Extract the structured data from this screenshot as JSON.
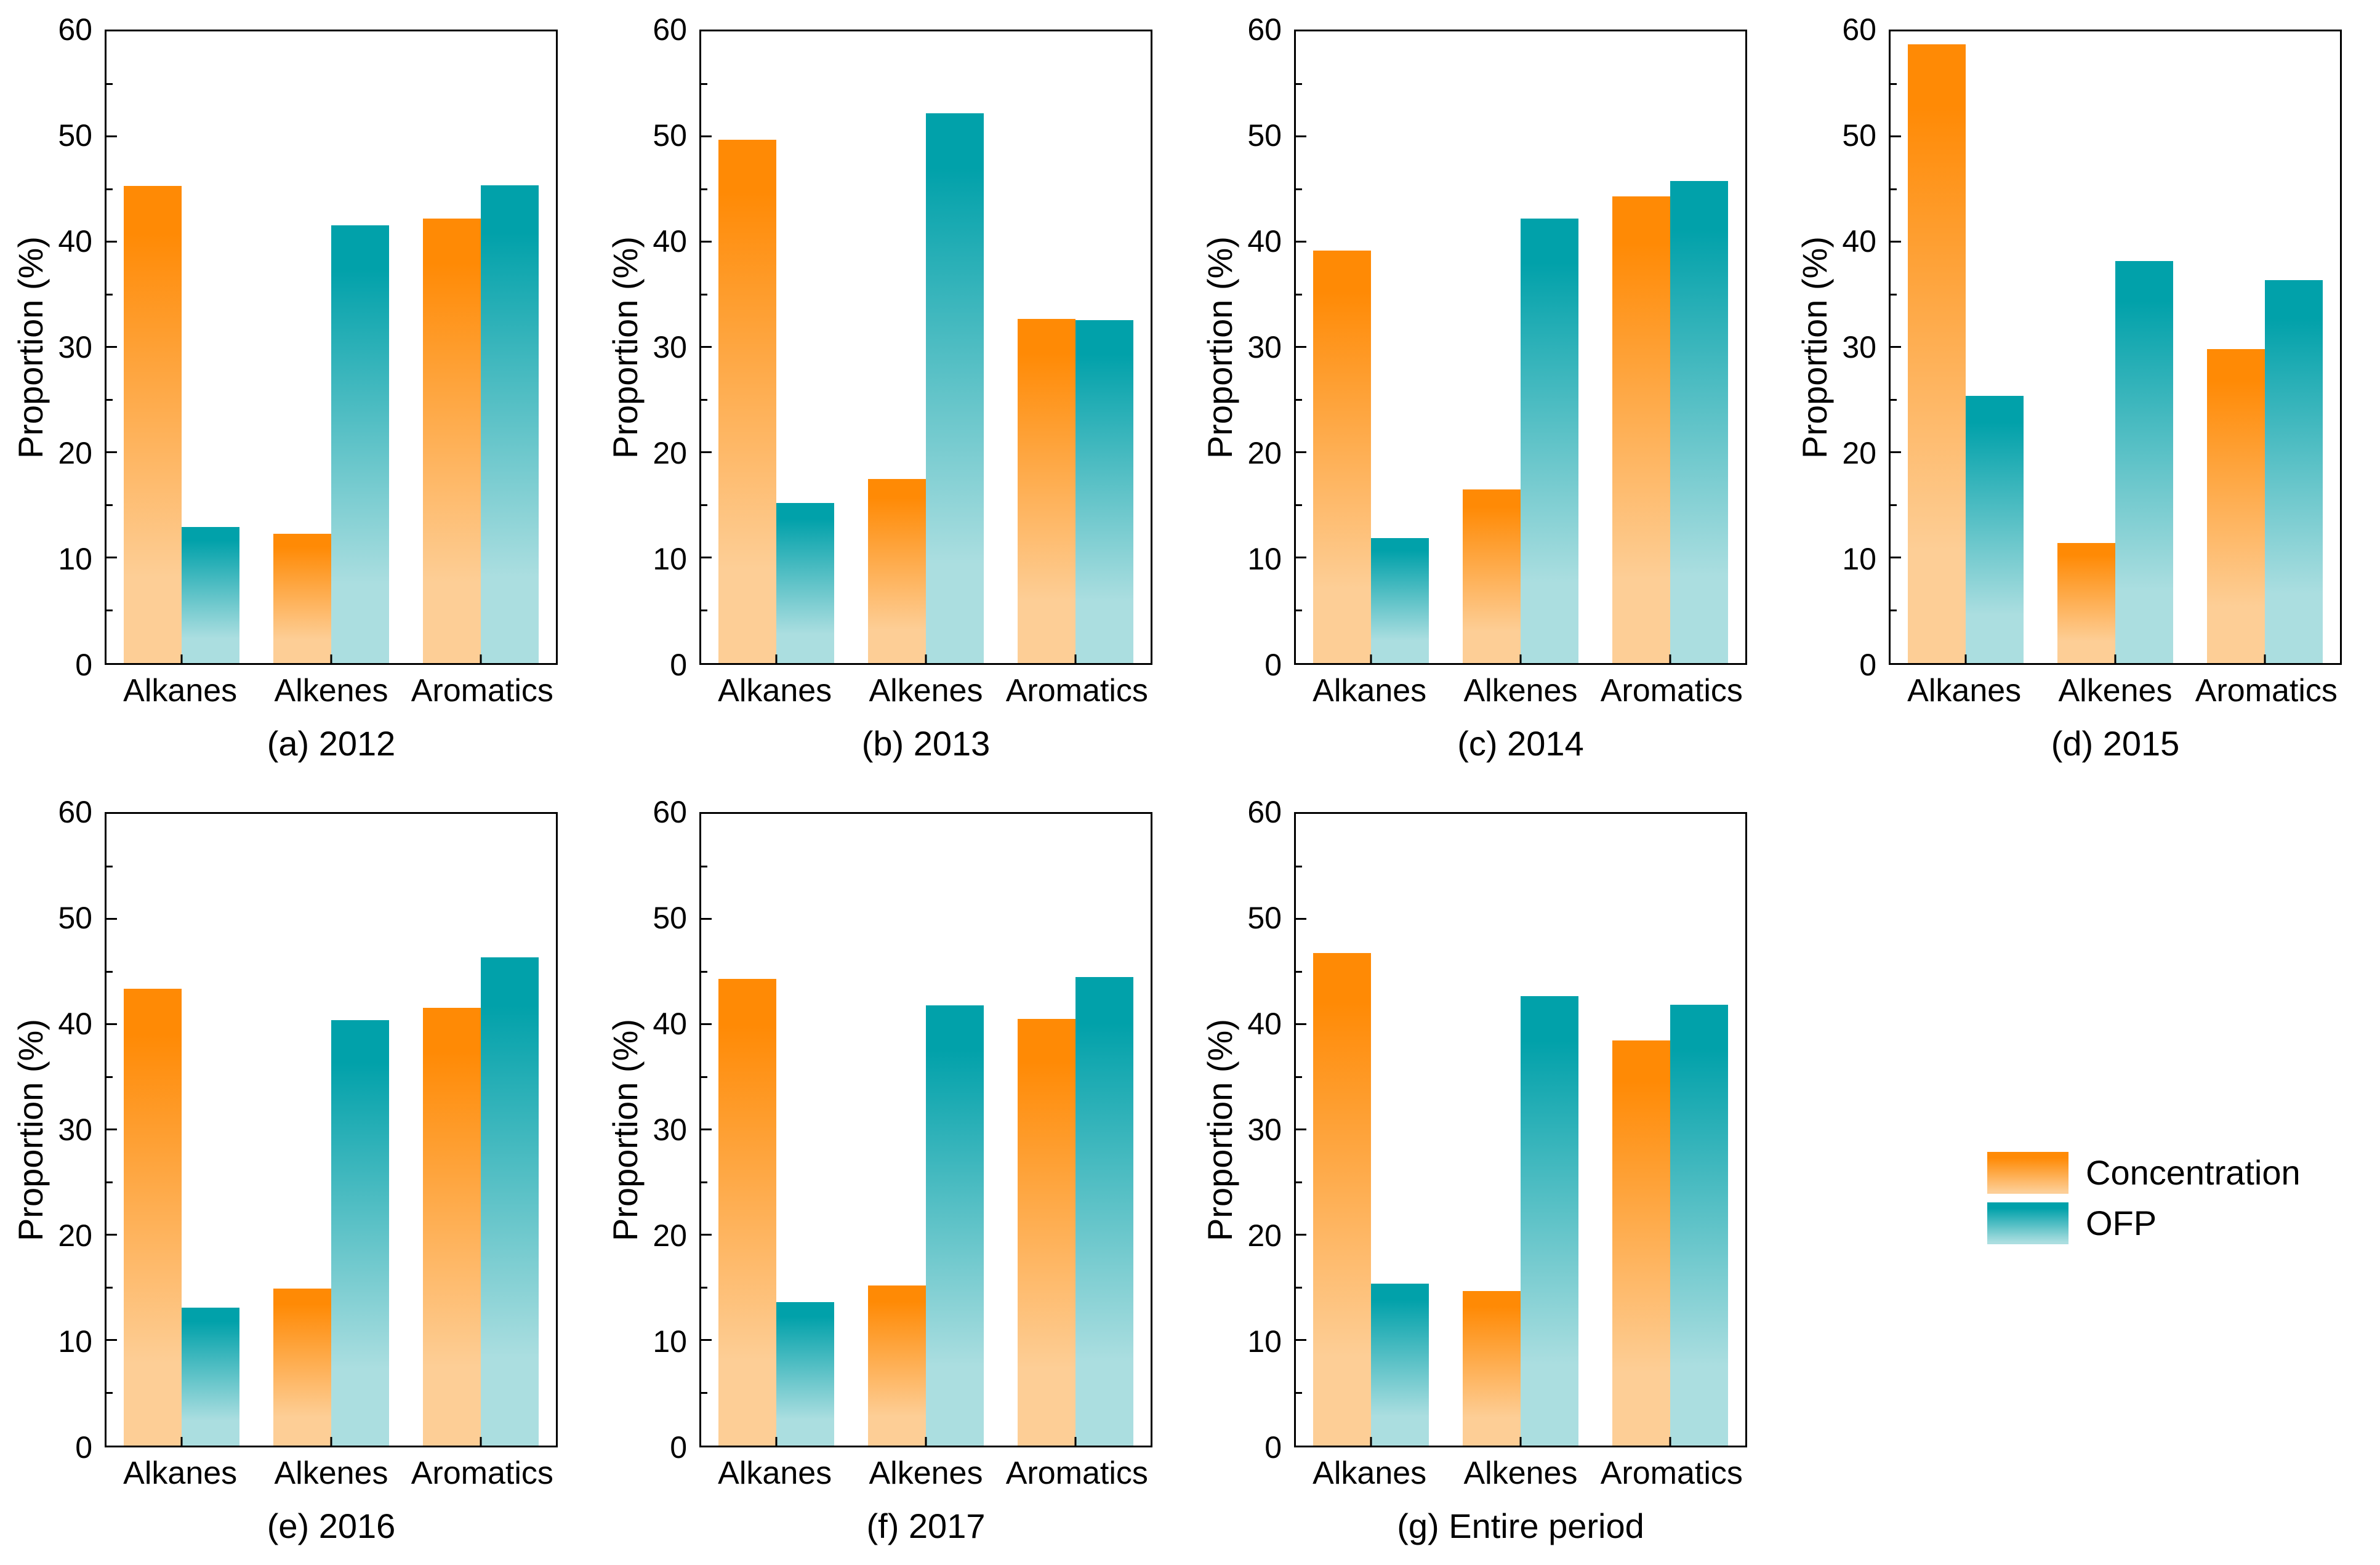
{
  "figure": {
    "background": "#ffffff"
  },
  "colors": {
    "concentration_top": "#FF8A05",
    "concentration_bottom": "#FDCE96",
    "ofp_top": "#01A1AA",
    "ofp_bottom": "#ABDEE0",
    "axis": "#000000"
  },
  "axis": {
    "ylabel": "Proportion (%)",
    "ymin": 0,
    "ymax": 60,
    "major_step": 10,
    "minor_step": 5,
    "yticks": [
      0,
      10,
      20,
      30,
      40,
      50,
      60
    ]
  },
  "legend": {
    "items": [
      {
        "label": "Concentration",
        "series": "concentration"
      },
      {
        "label": "OFP",
        "series": "ofp"
      }
    ]
  },
  "chart_data": [
    {
      "type": "bar",
      "title": "(a) 2012",
      "categories": [
        "Alkanes",
        "Alkenes",
        "Aromatics"
      ],
      "series": [
        {
          "name": "Concentration",
          "values": [
            45.3,
            12.3,
            42.2
          ]
        },
        {
          "name": "OFP",
          "values": [
            12.9,
            41.6,
            45.4
          ]
        }
      ],
      "xlabel": "",
      "ylabel": "Proportion (%)",
      "ylim": [
        0,
        60
      ],
      "grid": false,
      "legend_position": "none"
    },
    {
      "type": "bar",
      "title": "(b) 2013",
      "categories": [
        "Alkanes",
        "Alkenes",
        "Aromatics"
      ],
      "series": [
        {
          "name": "Concentration",
          "values": [
            49.7,
            17.5,
            32.7
          ]
        },
        {
          "name": "OFP",
          "values": [
            15.2,
            52.2,
            32.6
          ]
        }
      ],
      "xlabel": "",
      "ylabel": "Proportion (%)",
      "ylim": [
        0,
        60
      ],
      "grid": false,
      "legend_position": "none"
    },
    {
      "type": "bar",
      "title": "(c) 2014",
      "categories": [
        "Alkanes",
        "Alkenes",
        "Aromatics"
      ],
      "series": [
        {
          "name": "Concentration",
          "values": [
            39.2,
            16.5,
            44.3
          ]
        },
        {
          "name": "OFP",
          "values": [
            11.9,
            42.2,
            45.8
          ]
        }
      ],
      "xlabel": "",
      "ylabel": "Proportion (%)",
      "ylim": [
        0,
        60
      ],
      "grid": false,
      "legend_position": "none"
    },
    {
      "type": "bar",
      "title": "(d) 2015",
      "categories": [
        "Alkanes",
        "Alkenes",
        "Aromatics"
      ],
      "series": [
        {
          "name": "Concentration",
          "values": [
            58.8,
            11.4,
            29.8
          ]
        },
        {
          "name": "OFP",
          "values": [
            25.4,
            38.2,
            36.4
          ]
        }
      ],
      "xlabel": "",
      "ylabel": "Proportion (%)",
      "ylim": [
        0,
        60
      ],
      "grid": false,
      "legend_position": "none"
    },
    {
      "type": "bar",
      "title": "(e) 2016",
      "categories": [
        "Alkanes",
        "Alkenes",
        "Aromatics"
      ],
      "series": [
        {
          "name": "Concentration",
          "values": [
            43.4,
            14.9,
            41.6
          ]
        },
        {
          "name": "OFP",
          "values": [
            13.1,
            40.4,
            46.4
          ]
        }
      ],
      "xlabel": "",
      "ylabel": "Proportion (%)",
      "ylim": [
        0,
        60
      ],
      "grid": false,
      "legend_position": "none"
    },
    {
      "type": "bar",
      "title": "(f) 2017",
      "categories": [
        "Alkanes",
        "Alkenes",
        "Aromatics"
      ],
      "series": [
        {
          "name": "Concentration",
          "values": [
            44.3,
            15.2,
            40.5
          ]
        },
        {
          "name": "OFP",
          "values": [
            13.6,
            41.8,
            44.5
          ]
        }
      ],
      "xlabel": "",
      "ylabel": "Proportion (%)",
      "ylim": [
        0,
        60
      ],
      "grid": false,
      "legend_position": "none"
    },
    {
      "type": "bar",
      "title": "(g) Entire period",
      "categories": [
        "Alkanes",
        "Alkenes",
        "Aromatics"
      ],
      "series": [
        {
          "name": "Concentration",
          "values": [
            46.8,
            14.7,
            38.5
          ]
        },
        {
          "name": "OFP",
          "values": [
            15.4,
            42.7,
            41.9
          ]
        }
      ],
      "xlabel": "",
      "ylabel": "Proportion (%)",
      "ylim": [
        0,
        60
      ],
      "grid": false,
      "legend_position": "right-cell"
    }
  ]
}
